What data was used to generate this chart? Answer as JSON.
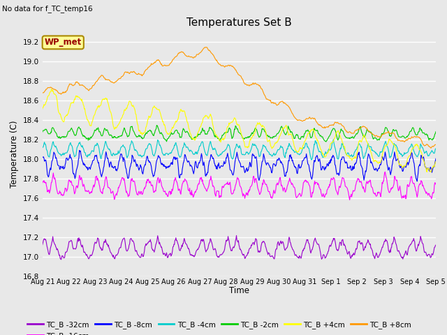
{
  "title": "Temperatures Set B",
  "subtitle": "No data for f_TC_temp16",
  "xlabel": "Time",
  "ylabel": "Temperature (C)",
  "ylim": [
    16.8,
    19.3
  ],
  "yticks": [
    16.8,
    17.0,
    17.2,
    17.4,
    17.6,
    17.8,
    18.0,
    18.2,
    18.4,
    18.6,
    18.8,
    19.0,
    19.2
  ],
  "bg_color": "#e8e8e8",
  "series_colors": {
    "TC_B -32cm": "#9900cc",
    "TC_B -16cm": "#ff00ff",
    "TC_B -8cm": "#0000ff",
    "TC_B -4cm": "#00cccc",
    "TC_B -2cm": "#00cc00",
    "TC_B +4cm": "#ffff00",
    "TC_B +8cm": "#ff9900"
  },
  "wp_met_text_color": "#990000",
  "tick_labels": [
    "Aug 21",
    "Aug 22",
    "Aug 23",
    "Aug 24",
    "Aug 25",
    "Aug 26",
    "Aug 27",
    "Aug 28",
    "Aug 29",
    "Aug 30",
    "Aug 31",
    "Sep 1",
    "Sep 2",
    "Sep 3",
    "Sep 4",
    "Sep 5"
  ]
}
